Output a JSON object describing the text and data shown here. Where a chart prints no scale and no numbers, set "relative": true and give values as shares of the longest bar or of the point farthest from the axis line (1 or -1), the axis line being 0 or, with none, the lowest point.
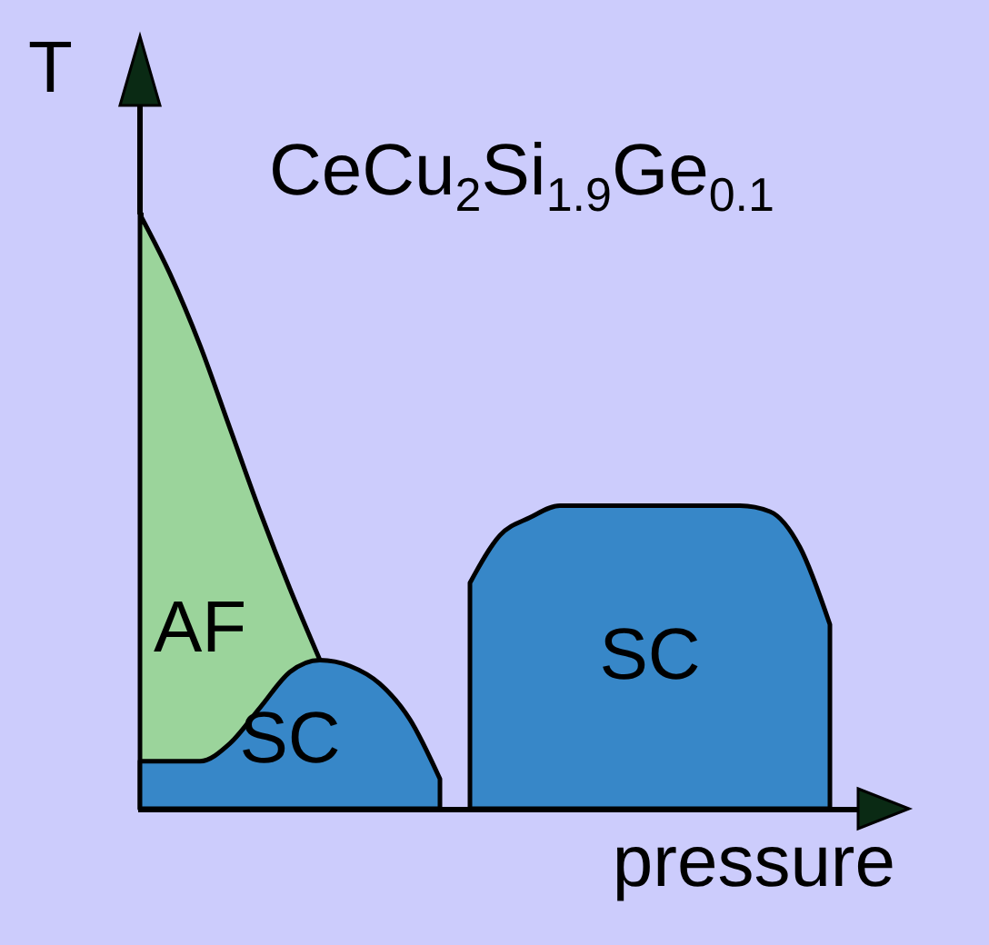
{
  "chart_data": {
    "type": "area",
    "title": "CeCu$_{2}$Si$_{1.9}$Ge$_{0.1}$",
    "xlabel": "pressure",
    "ylabel": "T",
    "relative": true,
    "categories": [
      null,
      null,
      null,
      null,
      null,
      null,
      null,
      null,
      null,
      null,
      null,
      null,
      null,
      null,
      null,
      null,
      null,
      null,
      null,
      null,
      null,
      null,
      null,
      null,
      null
    ],
    "series": [
      {
        "name": "AF",
        "color": "#9bd49b",
        "values": [
          1,
          0.9,
          0.78,
          0.64,
          0.5,
          0.37,
          0.25,
          null,
          null,
          null,
          null,
          null,
          null,
          null,
          null,
          null,
          null,
          null,
          null,
          null,
          null,
          null,
          null,
          null,
          null
        ]
      },
      {
        "name": "SC",
        "color": "#3787c8",
        "values": [
          0.08,
          0.08,
          0.08,
          0.11,
          0.17,
          0.23,
          0.25,
          0.24,
          0.21,
          0.15,
          0.05,
          null,
          null,
          null,
          null,
          null,
          null,
          null,
          null,
          null,
          null,
          null,
          null,
          null,
          null
        ]
      },
      {
        "name": "SC",
        "color": "#3787c8",
        "values": [
          null,
          null,
          null,
          null,
          null,
          null,
          null,
          null,
          null,
          null,
          null,
          0.38,
          0.46,
          0.49,
          0.51,
          0.51,
          0.51,
          0.51,
          0.51,
          0.51,
          0.51,
          0.5,
          0.44,
          0.31,
          null
        ]
      }
    ]
  }
}
